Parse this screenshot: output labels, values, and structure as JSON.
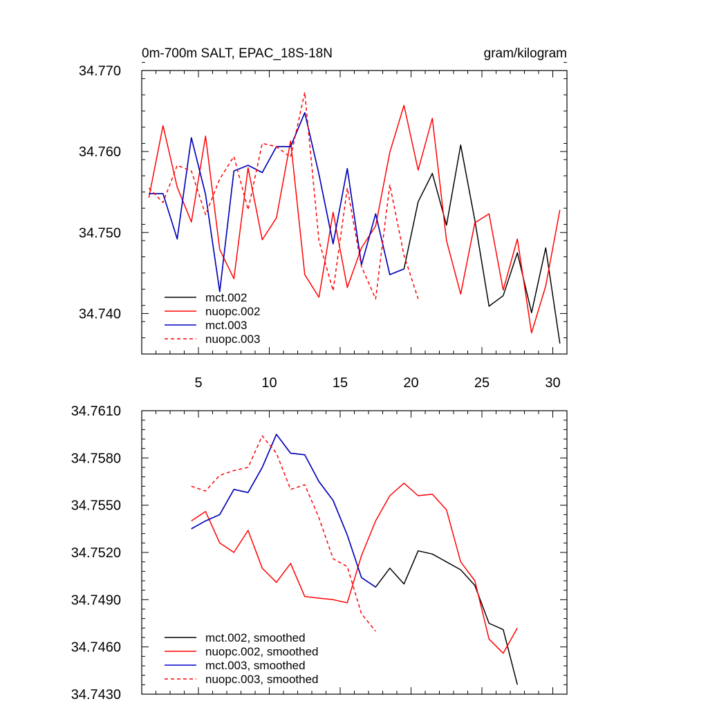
{
  "chart_data": [
    {
      "type": "line",
      "title": "0m-700m SALT, EPAC_18S-18N",
      "units": "gram/kilogram",
      "xlim": [
        1,
        31
      ],
      "ylim": [
        34.735,
        34.77
      ],
      "xticks": [
        5,
        10,
        15,
        20,
        25,
        30
      ],
      "xtick_labels": [
        "5",
        "10",
        "15",
        "20",
        "25",
        "30"
      ],
      "yticks": [
        34.74,
        34.75,
        34.76,
        34.77
      ],
      "ytick_labels": [
        "34.740",
        "34.750",
        "34.760",
        "34.770"
      ],
      "yminor_step": 0.002,
      "legend_position": "bottom-left",
      "series": [
        {
          "name": "mct.002",
          "color": "#000000",
          "dash": "solid",
          "x": [
            1.5,
            2.5,
            3.5,
            4.5,
            5.5,
            6.5,
            7.5,
            8.5,
            9.5,
            10.5,
            11.5,
            12.5,
            13.5,
            14.5,
            15.5,
            16.5,
            17.5,
            18.5,
            19.5,
            20.5,
            21.5,
            22.5,
            23.5,
            24.5,
            25.5,
            26.5,
            27.5,
            28.5,
            29.5,
            30.5
          ],
          "values": [
            34.7548,
            34.7548,
            34.7492,
            34.7617,
            34.7547,
            34.7427,
            34.7576,
            34.7583,
            34.7574,
            34.7606,
            34.7606,
            34.7648,
            34.7572,
            34.7486,
            34.7579,
            34.746,
            34.7523,
            34.7448,
            34.7455,
            34.7538,
            34.7573,
            34.7509,
            34.7608,
            34.7515,
            34.7409,
            34.7422,
            34.7475,
            34.7401,
            34.7481,
            34.7363
          ]
        },
        {
          "name": "nuopc.002",
          "color": "#ff0000",
          "dash": "solid",
          "x": [
            1.5,
            2.5,
            3.5,
            4.5,
            5.5,
            6.5,
            7.5,
            8.5,
            9.5,
            10.5,
            11.5,
            12.5,
            13.5,
            14.5,
            15.5,
            16.5,
            17.5,
            18.5,
            19.5,
            20.5,
            21.5,
            22.5,
            23.5,
            24.5,
            25.5,
            26.5,
            27.5,
            28.5,
            29.5,
            30.5
          ],
          "values": [
            34.7543,
            34.7632,
            34.7556,
            34.7513,
            34.7619,
            34.7479,
            34.7443,
            34.758,
            34.7491,
            34.7518,
            34.7613,
            34.7448,
            34.742,
            34.7525,
            34.7432,
            34.7481,
            34.7508,
            34.7599,
            34.7657,
            34.7577,
            34.7641,
            34.749,
            34.7424,
            34.7512,
            34.7523,
            34.7429,
            34.7492,
            34.7376,
            34.7434,
            34.7528
          ]
        },
        {
          "name": "mct.003",
          "color": "#0000cc",
          "dash": "solid",
          "x": [
            1.5,
            2.5,
            3.5,
            4.5,
            5.5,
            6.5,
            7.5,
            8.5,
            9.5,
            10.5,
            11.5,
            12.5,
            13.5,
            14.5,
            15.5,
            16.5,
            17.5,
            18.5,
            19.5
          ],
          "values": [
            34.7548,
            34.7548,
            34.7492,
            34.7617,
            34.7547,
            34.7427,
            34.7576,
            34.7583,
            34.7574,
            34.7606,
            34.7606,
            34.7648,
            34.7572,
            34.7486,
            34.7579,
            34.746,
            34.7523,
            34.7448,
            34.7455
          ]
        },
        {
          "name": "nuopc.003",
          "color": "#ff0000",
          "dash": "dashed",
          "x": [
            1.5,
            2.5,
            3.5,
            4.5,
            5.5,
            6.5,
            7.5,
            8.5,
            9.5,
            10.5,
            11.5,
            12.5,
            13.5,
            14.5,
            15.5,
            16.5,
            17.5,
            18.5,
            19.5,
            20.5
          ],
          "values": [
            34.7555,
            34.7537,
            34.7583,
            34.7576,
            34.7522,
            34.7566,
            34.7594,
            34.7528,
            34.761,
            34.7606,
            34.7593,
            34.7673,
            34.749,
            34.7428,
            34.7555,
            34.7458,
            34.7418,
            34.7559,
            34.7472,
            34.7418
          ]
        }
      ]
    },
    {
      "type": "line",
      "title": "",
      "xlim": [
        1,
        31
      ],
      "ylim": [
        34.743,
        34.761
      ],
      "xticks": [
        5,
        10,
        15,
        20,
        25,
        30
      ],
      "xtick_labels": [
        "",
        "",
        "",
        "",
        "",
        ""
      ],
      "yticks": [
        34.743,
        34.746,
        34.749,
        34.752,
        34.755,
        34.758,
        34.761
      ],
      "ytick_labels": [
        "34.7430",
        "34.7460",
        "34.7490",
        "34.7520",
        "34.7550",
        "34.7580",
        "34.7610"
      ],
      "yminor_step": 0.0006,
      "legend_position": "bottom-left",
      "series": [
        {
          "name": "mct.002, smoothed",
          "color": "#000000",
          "dash": "solid",
          "x": [
            4.5,
            5.5,
            6.5,
            7.5,
            8.5,
            9.5,
            10.5,
            11.5,
            12.5,
            13.5,
            14.5,
            15.5,
            16.5,
            17.5,
            18.5,
            19.5,
            20.5,
            21.5,
            22.5,
            23.5,
            24.5,
            25.5,
            26.5,
            27.5
          ],
          "values": [
            34.7535,
            34.754,
            34.7544,
            34.756,
            34.7558,
            34.7574,
            34.7595,
            34.7583,
            34.7582,
            34.7565,
            34.7553,
            34.7531,
            34.7504,
            34.7498,
            34.751,
            34.75,
            34.7521,
            34.7519,
            34.7514,
            34.7509,
            34.7499,
            34.7475,
            34.7471,
            34.7436
          ]
        },
        {
          "name": "nuopc.002, smoothed",
          "color": "#ff0000",
          "dash": "solid",
          "x": [
            4.5,
            5.5,
            6.5,
            7.5,
            8.5,
            9.5,
            10.5,
            11.5,
            12.5,
            13.5,
            14.5,
            15.5,
            16.5,
            17.5,
            18.5,
            19.5,
            20.5,
            21.5,
            22.5,
            23.5,
            24.5,
            25.5,
            26.5,
            27.5
          ],
          "values": [
            34.754,
            34.7546,
            34.7526,
            34.752,
            34.7534,
            34.751,
            34.7501,
            34.7513,
            34.7492,
            34.7491,
            34.749,
            34.7488,
            34.7518,
            34.754,
            34.7556,
            34.7564,
            34.7556,
            34.7557,
            34.7547,
            34.7514,
            34.7502,
            34.7465,
            34.7456,
            34.7472
          ]
        },
        {
          "name": "mct.003, smoothed",
          "color": "#0000cc",
          "dash": "solid",
          "x": [
            4.5,
            5.5,
            6.5,
            7.5,
            8.5,
            9.5,
            10.5,
            11.5,
            12.5,
            13.5,
            14.5,
            15.5,
            16.5,
            17.5
          ],
          "values": [
            34.7535,
            34.754,
            34.7544,
            34.756,
            34.7558,
            34.7574,
            34.7595,
            34.7583,
            34.7582,
            34.7565,
            34.7553,
            34.7531,
            34.7504,
            34.7498
          ]
        },
        {
          "name": "nuopc.003, smoothed",
          "color": "#ff0000",
          "dash": "dashed",
          "x": [
            4.5,
            5.5,
            6.5,
            7.5,
            8.5,
            9.5,
            10.5,
            11.5,
            12.5,
            13.5,
            14.5,
            15.5,
            16.5,
            17.5
          ],
          "values": [
            34.7562,
            34.7559,
            34.7569,
            34.7572,
            34.7574,
            34.7594,
            34.7583,
            34.756,
            34.7563,
            34.7542,
            34.7516,
            34.7511,
            34.7481,
            34.747
          ]
        }
      ]
    }
  ]
}
